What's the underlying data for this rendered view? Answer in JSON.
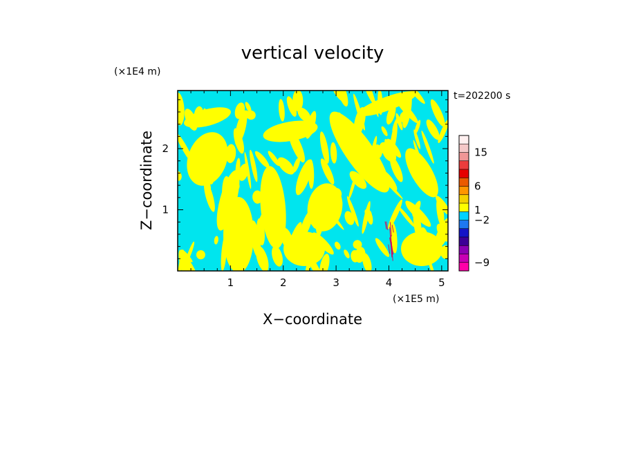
{
  "chart_data": {
    "type": "heatmap",
    "title": "vertical velocity",
    "xlabel": "X−coordinate",
    "ylabel": "Z−coordinate",
    "x_unit": "(×1E5 m)",
    "y_unit": "(×1E4 m)",
    "time_label": "t=202200 s",
    "xlim": [
      0,
      5.12
    ],
    "ylim": [
      0,
      2.95
    ],
    "x_ticks": [
      1,
      2,
      3,
      4,
      5
    ],
    "y_ticks": [
      1,
      2
    ],
    "x_tick_labels": [
      "1",
      "2",
      "3",
      "4",
      "5"
    ],
    "y_tick_labels": [
      "1",
      "2"
    ],
    "field_colors": {
      "updraft": "#ffff00",
      "downdraft": "#00e5ee",
      "strong": "#cc1060"
    },
    "colorbar": {
      "levels": [
        {
          "color": "#ff00a8"
        },
        {
          "color": "#c800b4"
        },
        {
          "color": "#8c00b4"
        },
        {
          "color": "#3c0096"
        },
        {
          "color": "#1414c8"
        },
        {
          "color": "#1e78f0"
        },
        {
          "color": "#00d2ff"
        },
        {
          "color": "#ffff00"
        },
        {
          "color": "#f5d200"
        },
        {
          "color": "#ff9600"
        },
        {
          "color": "#eb5a00"
        },
        {
          "color": "#e60000"
        },
        {
          "color": "#eb3c3c"
        },
        {
          "color": "#f09696"
        },
        {
          "color": "#f5c8c8"
        },
        {
          "color": "#fff0f0"
        }
      ],
      "labels": [
        {
          "text": "15",
          "level": 14
        },
        {
          "text": "6",
          "level": 10
        },
        {
          "text": "1",
          "level": 7.2
        },
        {
          "text": "−2",
          "level": 6.0
        },
        {
          "text": "−9",
          "level": 1.0
        }
      ]
    }
  }
}
